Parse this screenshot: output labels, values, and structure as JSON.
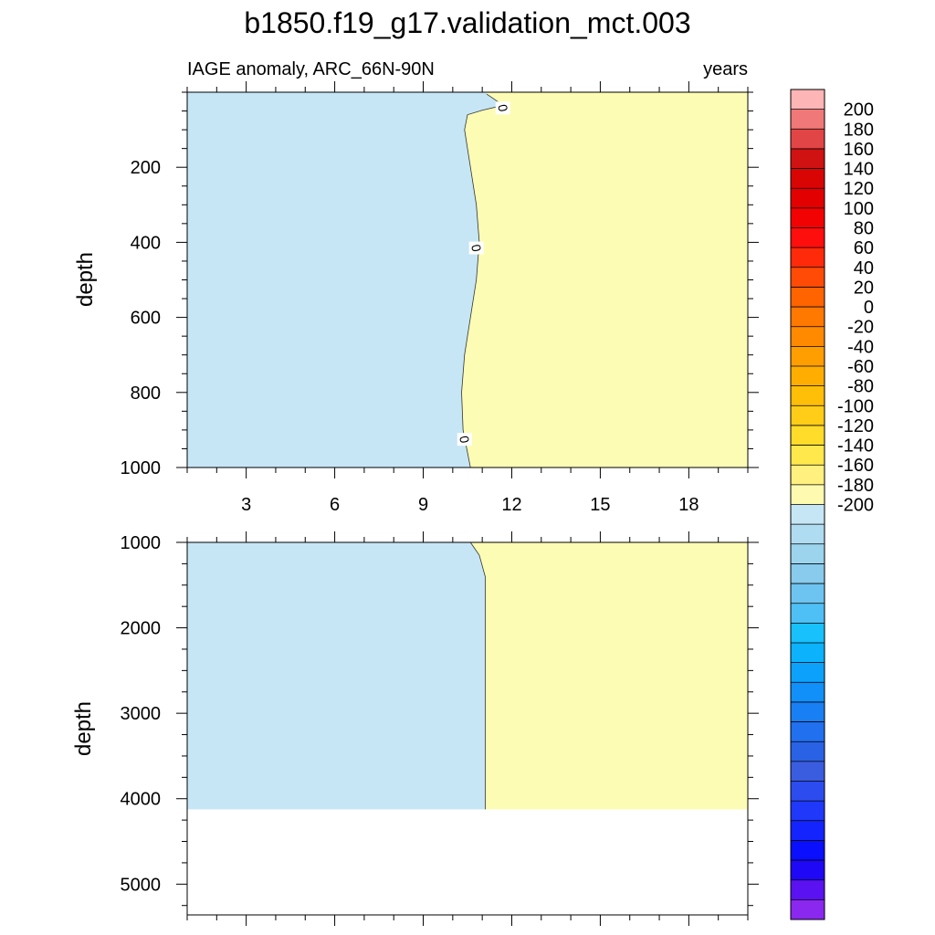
{
  "chart_data": {
    "type": "heatmap",
    "title": "b1850.f19_g17.validation_mct.003",
    "subtitle_left": "IAGE anomaly, ARC_66N-90N",
    "subtitle_right": "years",
    "xlim": [
      1,
      20
    ],
    "x_ticks": [
      3,
      6,
      9,
      12,
      15,
      18
    ],
    "fill_colors": {
      "negative": "#c6e6f6",
      "positive": "#fdfcb4",
      "missing": "#ffffff"
    },
    "panels": [
      {
        "name": "upper",
        "ylabel": "depth",
        "ylim": [
          1000,
          0
        ],
        "y_ticks": [
          200,
          400,
          600,
          800,
          1000
        ],
        "zero_contour": [
          {
            "x": 11.15,
            "y": 5
          },
          {
            "x": 11.4,
            "y": 18
          },
          {
            "x": 11.7,
            "y": 35
          },
          {
            "x": 11.0,
            "y": 48
          },
          {
            "x": 10.5,
            "y": 60
          },
          {
            "x": 10.4,
            "y": 100
          },
          {
            "x": 10.6,
            "y": 200
          },
          {
            "x": 10.8,
            "y": 300
          },
          {
            "x": 10.9,
            "y": 400
          },
          {
            "x": 10.8,
            "y": 500
          },
          {
            "x": 10.6,
            "y": 600
          },
          {
            "x": 10.4,
            "y": 700
          },
          {
            "x": 10.3,
            "y": 800
          },
          {
            "x": 10.35,
            "y": 900
          },
          {
            "x": 10.6,
            "y": 1000
          }
        ],
        "contour_labels": [
          {
            "text": "0",
            "x": 11.7,
            "y": 42
          },
          {
            "text": "0",
            "x": 10.8,
            "y": 415
          },
          {
            "text": "0",
            "x": 10.4,
            "y": 925
          }
        ]
      },
      {
        "name": "lower",
        "ylabel": "depth",
        "ylim": [
          5360,
          1000
        ],
        "y_ticks": [
          1000,
          2000,
          3000,
          4000,
          5000
        ],
        "data_bottom": 4125,
        "zero_contour": [
          {
            "x": 10.6,
            "y": 1000
          },
          {
            "x": 10.9,
            "y": 1150
          },
          {
            "x": 11.1,
            "y": 1400
          },
          {
            "x": 11.1,
            "y": 2000
          },
          {
            "x": 11.1,
            "y": 3000
          },
          {
            "x": 11.1,
            "y": 4125
          }
        ]
      }
    ],
    "colorbar": {
      "min": -210,
      "max": 210,
      "step": 10,
      "labels": [
        "200",
        "180",
        "160",
        "140",
        "120",
        "100",
        "80",
        "60",
        "40",
        "20",
        "0",
        "-20",
        "-40",
        "-60",
        "-80",
        "-100",
        "-120",
        "-140",
        "-160",
        "-180",
        "-200"
      ],
      "colors": [
        "#fdb5b5",
        "#f07878",
        "#e24545",
        "#d01212",
        "#d90505",
        "#e20000",
        "#f20202",
        "#ff0e0e",
        "#ff2a0a",
        "#ff4b05",
        "#ff6400",
        "#ff7800",
        "#ff8a00",
        "#ff9e00",
        "#ffae00",
        "#ffbe08",
        "#ffcc18",
        "#ffdb2a",
        "#ffe84c",
        "#fff080",
        "#fefbb0",
        "#c6e6f6",
        "#b0dcf1",
        "#9cd4ee",
        "#88cbec",
        "#6ec4f0",
        "#4fc0f5",
        "#18c0fc",
        "#0cb2fc",
        "#0ca2fb",
        "#1090f8",
        "#197ff5",
        "#2070ef",
        "#2a62e6",
        "#3a5ddf",
        "#2c4cf0",
        "#2038fa",
        "#1424ff",
        "#0a10fd",
        "#1f08f6",
        "#5a12f2",
        "#8a28ef"
      ]
    }
  }
}
